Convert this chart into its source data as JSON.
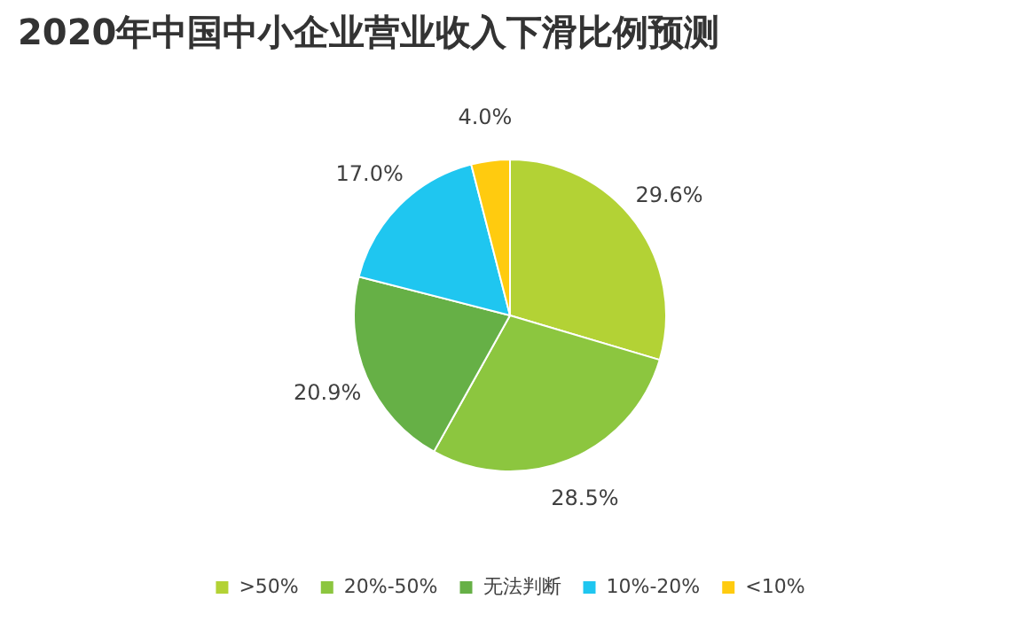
{
  "chart_data": {
    "type": "pie",
    "title": "2020年中国中小企业营业收入下滑比例预测",
    "categories": [
      ">50%",
      "20%-50%",
      "无法判断",
      "10%-20%",
      "<10%"
    ],
    "values": [
      29.6,
      28.5,
      20.9,
      17.0,
      4.0
    ],
    "value_labels": [
      "29.6%",
      "28.5%",
      "20.9%",
      "17.0%",
      "4.0%"
    ],
    "colors": [
      "#b3d235",
      "#8cc63f",
      "#66b046",
      "#1fc6f0",
      "#ffcb0f"
    ],
    "legend": "bottom"
  }
}
